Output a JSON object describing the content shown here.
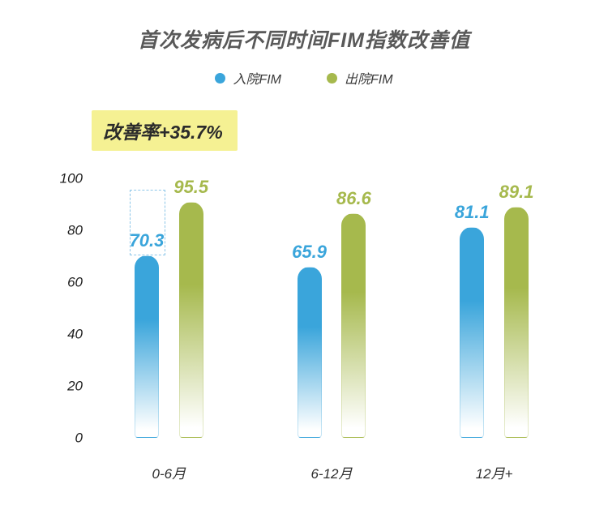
{
  "title": "首次发病后不同时间FIM指数改善值",
  "improvement_badge": {
    "label": "改善率+35.7%"
  },
  "legend": {
    "items": [
      {
        "label": "入院FIM",
        "color": "#3aa5db"
      },
      {
        "label": "出院FIM",
        "color": "#a6b94d"
      }
    ]
  },
  "chart_data": {
    "type": "bar",
    "title": "首次发病后不同时间FIM指数改善值",
    "categories": [
      "0-6月",
      "6-12月",
      "12月+"
    ],
    "series": [
      {
        "name": "入院FIM",
        "color": "#3aa5db",
        "values": [
          70.3,
          65.9,
          81.1
        ]
      },
      {
        "name": "出院FIM",
        "color": "#a6b94d",
        "values": [
          95.5,
          86.6,
          89.1
        ]
      }
    ],
    "xlabel": "",
    "ylabel": "",
    "ylim": [
      0,
      100
    ],
    "yticks": [
      0,
      20,
      40,
      60,
      80,
      100
    ],
    "grid": false,
    "legend_position": "top",
    "annotation": "改善率+35.7%",
    "improvement_indicator": {
      "category_index": 0,
      "from": 70.3,
      "to": 95.5
    }
  }
}
